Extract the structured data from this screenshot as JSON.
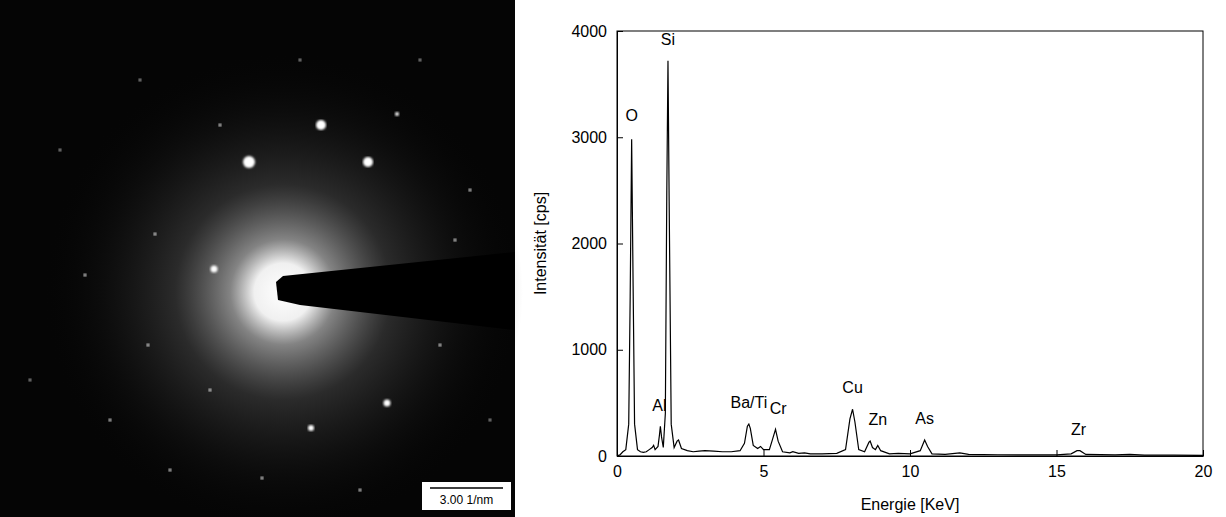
{
  "image": {
    "scale_bar": "3.00 1/nm"
  },
  "chart_data": {
    "type": "line",
    "x_label": "Energie [KeV]",
    "y_label": "Intensität [cps]",
    "color": "#000000",
    "xlim": [
      0,
      20
    ],
    "xticks": [
      0,
      5,
      10,
      15,
      20
    ],
    "ylim": [
      0,
      4000
    ],
    "yticks": [
      0,
      1000,
      2000,
      3000,
      4000
    ],
    "x": [
      0,
      0.1,
      0.2,
      0.3,
      0.4,
      0.45,
      0.5,
      0.55,
      0.6,
      0.7,
      0.8,
      0.9,
      1.0,
      1.1,
      1.2,
      1.25,
      1.3,
      1.4,
      1.45,
      1.48,
      1.52,
      1.58,
      1.65,
      1.7,
      1.74,
      1.78,
      1.85,
      1.95,
      2.05,
      2.1,
      2.2,
      2.4,
      2.6,
      2.8,
      3.0,
      3.3,
      3.6,
      3.9,
      4.2,
      4.35,
      4.45,
      4.5,
      4.55,
      4.65,
      4.8,
      4.9,
      5.0,
      5.2,
      5.3,
      5.41,
      5.5,
      5.65,
      5.9,
      6.0,
      6.2,
      6.4,
      6.6,
      7.0,
      7.5,
      7.8,
      7.95,
      8.04,
      8.12,
      8.25,
      8.45,
      8.6,
      8.64,
      8.72,
      8.82,
      8.9,
      9.0,
      9.3,
      9.6,
      10.0,
      10.35,
      10.5,
      10.6,
      10.75,
      11.2,
      11.7,
      12.0,
      13.0,
      14.0,
      15.0,
      15.5,
      15.7,
      15.8,
      16.0,
      17.0,
      17.5,
      18.0,
      19.0,
      20.0
    ],
    "values": [
      0,
      10,
      40,
      60,
      300,
      1500,
      2980,
      1600,
      300,
      60,
      40,
      35,
      40,
      60,
      80,
      100,
      60,
      90,
      200,
      280,
      180,
      80,
      400,
      2500,
      3720,
      2400,
      300,
      80,
      140,
      150,
      70,
      50,
      40,
      45,
      50,
      45,
      40,
      40,
      50,
      120,
      280,
      300,
      260,
      100,
      70,
      90,
      60,
      60,
      150,
      250,
      140,
      40,
      30,
      40,
      25,
      30,
      20,
      20,
      25,
      60,
      350,
      440,
      320,
      60,
      40,
      130,
      140,
      80,
      60,
      100,
      50,
      20,
      25,
      20,
      50,
      150,
      90,
      20,
      15,
      30,
      15,
      12,
      10,
      10,
      20,
      50,
      50,
      15,
      10,
      15,
      8,
      8,
      5
    ],
    "annotations": [
      {
        "text": "O",
        "x": 0.5,
        "y": 3150
      },
      {
        "text": "Al",
        "x": 1.45,
        "y": 420
      },
      {
        "text": "Si",
        "x": 1.74,
        "y": 3870
      },
      {
        "text": "Ba/Ti",
        "x": 4.5,
        "y": 450
      },
      {
        "text": "Cr",
        "x": 5.5,
        "y": 400
      },
      {
        "text": "Cu",
        "x": 8.04,
        "y": 590
      },
      {
        "text": "Zn",
        "x": 8.9,
        "y": 290
      },
      {
        "text": "As",
        "x": 10.5,
        "y": 300
      },
      {
        "text": "Zr",
        "x": 15.75,
        "y": 200
      }
    ]
  }
}
